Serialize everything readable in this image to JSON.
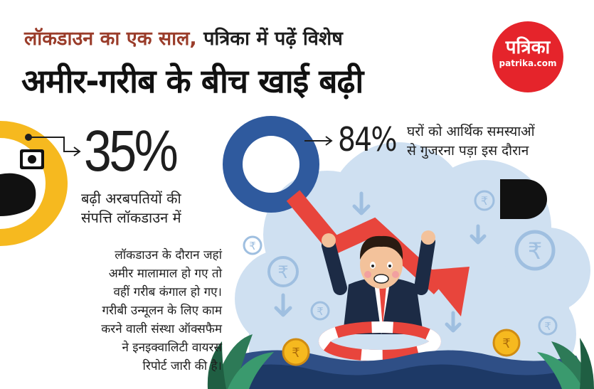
{
  "header": {
    "kicker_accent": "लॉकडाउन का एक साल,",
    "kicker_rest": " पत्रिका में पढ़ें विशेष",
    "headline": "अमीर-गरीब के बीच खाई बढ़ी"
  },
  "logo": {
    "name": "पत्रिका",
    "url": "patrika.com"
  },
  "stat1": {
    "value": "35%",
    "caption_line1": "बढ़ी अरबपतियों की",
    "caption_line2": "संपत्ति लॉकडाउन में"
  },
  "stat2": {
    "value": "84%",
    "caption_line1": "घरों को आर्थिक समस्याओं",
    "caption_line2": "से गुजरना पड़ा इस दौरान"
  },
  "body": {
    "lines": [
      "लॉकडाउन के दौरान जहां",
      "अमीर मालामाल हो गए तो",
      "वहीं गरीब कंगाल हो गए।",
      "गरीबी उन्मूलन के लिए काम",
      "करने वाली संस्था ऑक्सफैम",
      "ने इनइक्वालिटी वायरस",
      "रिपोर्ट जारी की है।"
    ]
  },
  "colors": {
    "accent": "#9a3c2a",
    "logo_red": "#e5242b",
    "ring_blue": "#2f5a9e",
    "arrow_red": "#e8453c",
    "bubble_blue": "#cfe0f1",
    "yellow": "#f6b91f"
  },
  "icons": {
    "money_hand": "money-in-hand-icon",
    "rupee": "rupee-coin-icon",
    "down_arrow": "down-arrow-icon"
  }
}
